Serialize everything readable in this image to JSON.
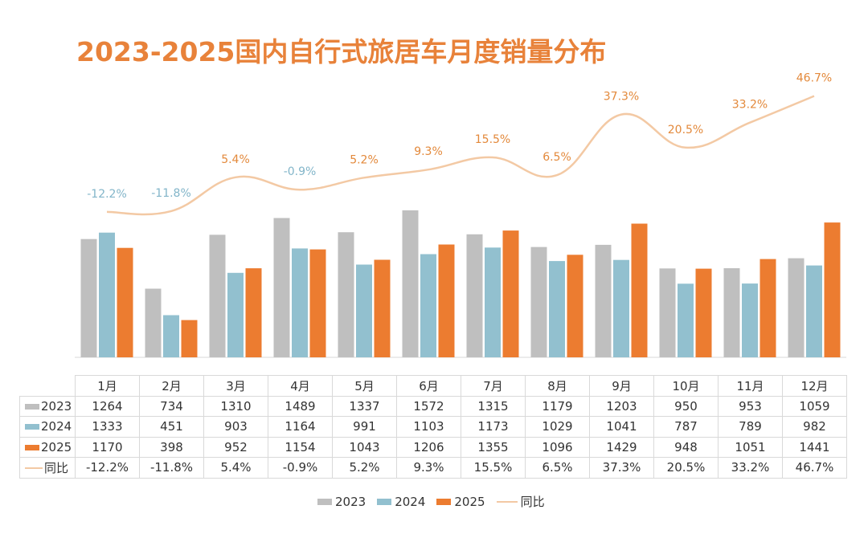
{
  "title": "2023-2025国内自行式旅居车月度销量分布",
  "colors": {
    "s2023": "#bfbfbf",
    "s2024": "#92c0cf",
    "s2025": "#ec7c30",
    "yoy_line": "#f3c9a4",
    "yoy_label_pos": "#e3893b",
    "yoy_label_neg": "#82b5c9",
    "title": "#e8823a"
  },
  "chart_data": {
    "type": "bar",
    "categories": [
      "1月",
      "2月",
      "3月",
      "4月",
      "5月",
      "6月",
      "7月",
      "8月",
      "9月",
      "10月",
      "11月",
      "12月"
    ],
    "series": [
      {
        "name": "2023",
        "values": [
          1264,
          734,
          1310,
          1489,
          1337,
          1572,
          1315,
          1179,
          1203,
          950,
          953,
          1059
        ]
      },
      {
        "name": "2024",
        "values": [
          1333,
          451,
          903,
          1164,
          991,
          1103,
          1173,
          1029,
          1041,
          787,
          789,
          982
        ]
      },
      {
        "name": "2025",
        "values": [
          1170,
          398,
          952,
          1154,
          1043,
          1206,
          1355,
          1096,
          1429,
          948,
          1051,
          1441
        ]
      }
    ],
    "line_series": {
      "name": "同比",
      "values": [
        -12.2,
        -11.8,
        5.4,
        -0.9,
        5.2,
        9.3,
        15.5,
        6.5,
        37.3,
        20.5,
        33.2,
        46.7
      ],
      "labels": [
        "-12.2%",
        "-11.8%",
        "5.4%",
        "-0.9%",
        "5.2%",
        "9.3%",
        "15.5%",
        "6.5%",
        "37.3%",
        "20.5%",
        "33.2%",
        "46.7%"
      ]
    },
    "table_rows": [
      {
        "label": "2023",
        "values": [
          "1264",
          "734",
          "1310",
          "1489",
          "1337",
          "1572",
          "1315",
          "1179",
          "1203",
          "950",
          "953",
          "1059"
        ]
      },
      {
        "label": "2024",
        "values": [
          "1333",
          "451",
          "903",
          "1164",
          "991",
          "1103",
          "1173",
          "1029",
          "1041",
          "787",
          "789",
          "982"
        ]
      },
      {
        "label": "2025",
        "values": [
          "1170",
          "398",
          "952",
          "1154",
          "1043",
          "1206",
          "1355",
          "1096",
          "1429",
          "948",
          "1051",
          "1441"
        ]
      },
      {
        "label": "同比",
        "values": [
          "-12.2%",
          "-11.8%",
          "5.4%",
          "-0.9%",
          "5.2%",
          "9.3%",
          "15.5%",
          "6.5%",
          "37.3%",
          "20.5%",
          "33.2%",
          "46.7%"
        ]
      }
    ],
    "legend": [
      "2023",
      "2024",
      "2025",
      "同比"
    ],
    "legend_position": "bottom",
    "grid": false
  }
}
